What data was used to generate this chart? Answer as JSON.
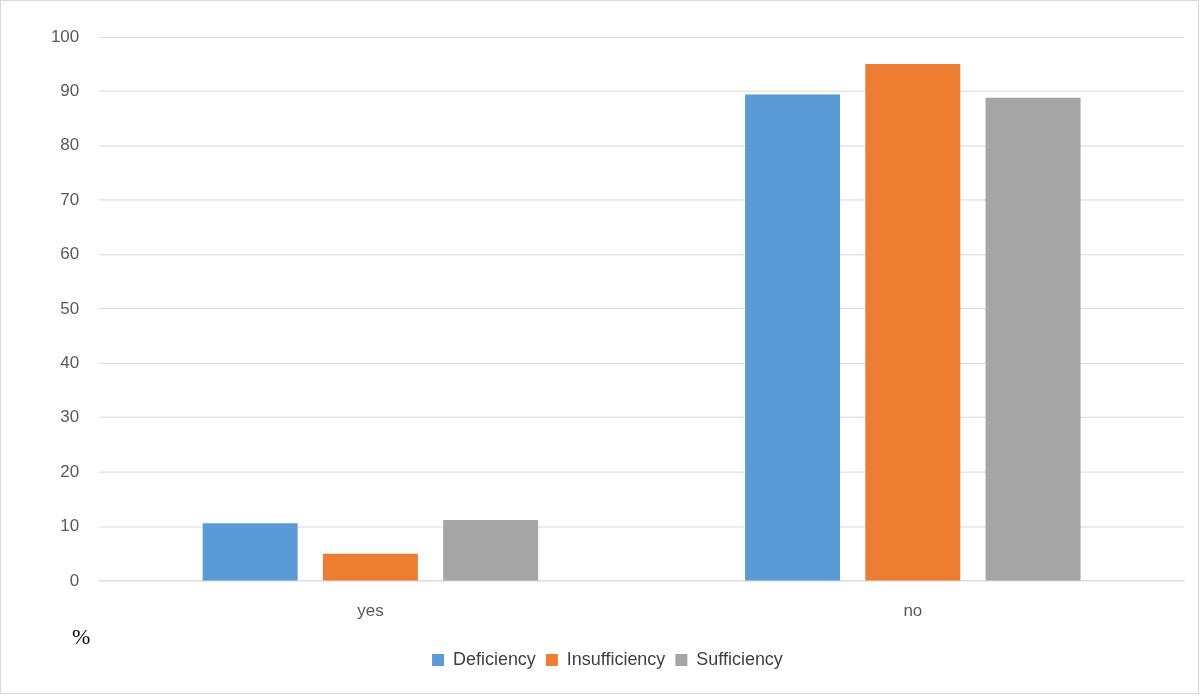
{
  "chart_data": {
    "type": "bar",
    "ylabel": "%",
    "categories": [
      "yes",
      "no"
    ],
    "series": [
      {
        "name": "Deficiency",
        "color": "#5b9bd5",
        "values": [
          10.6,
          89.4
        ]
      },
      {
        "name": "Insufficiency",
        "color": "#ed7d31",
        "values": [
          5.0,
          95.0
        ]
      },
      {
        "name": "Sufficiency",
        "color": "#a5a5a5",
        "values": [
          11.2,
          88.8
        ]
      }
    ],
    "ylim": [
      0,
      100
    ],
    "yticks": [
      0,
      10,
      20,
      30,
      40,
      50,
      60,
      70,
      80,
      90,
      100
    ],
    "grid": "y",
    "legend": "bottom"
  }
}
